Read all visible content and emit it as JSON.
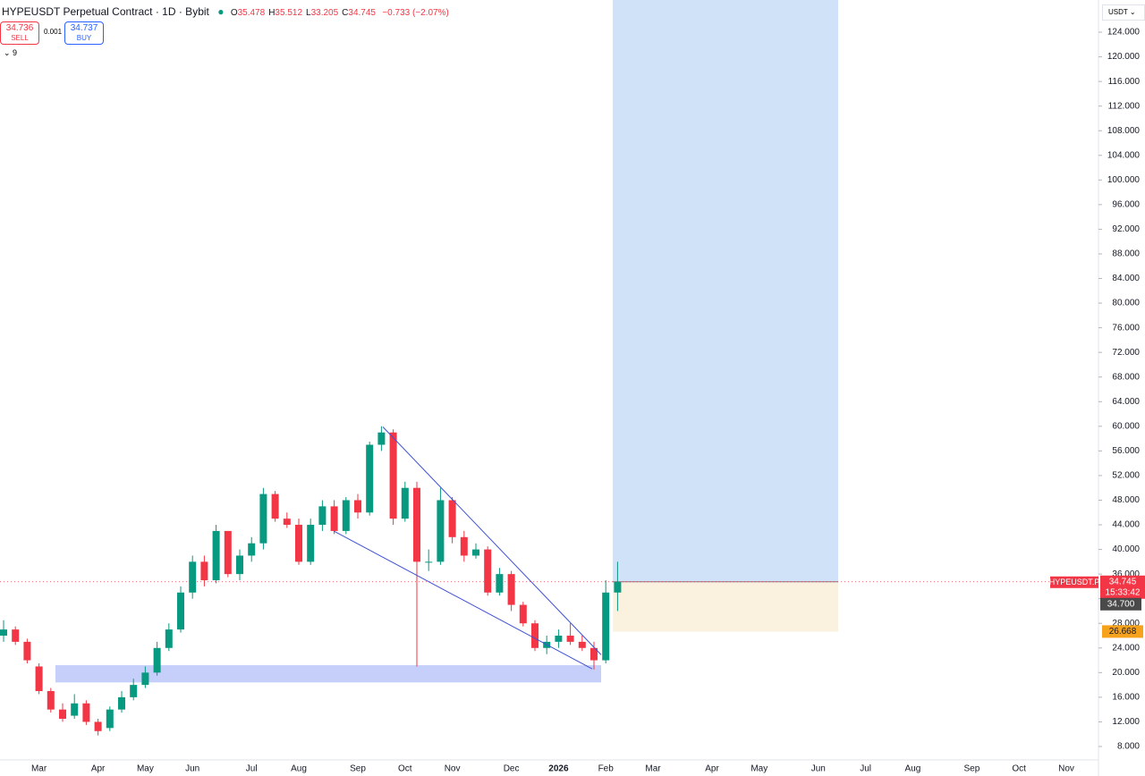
{
  "header": {
    "symbol_line": "HYPEUSDT Perpetual Contract · 1D · Bybit",
    "ohlc": [
      [
        "O",
        "35.478"
      ],
      [
        "H",
        "35.512"
      ],
      [
        "L",
        "33.205"
      ],
      [
        "C",
        "34.745"
      ]
    ],
    "change": "−0.733 (−2.07%)",
    "sell_price": "34.736",
    "sell": "SELL",
    "spread": "0.001",
    "buy_price": "34.737",
    "buy": "BUY",
    "indicators": "9",
    "currency": "USDT"
  },
  "chart_data": {
    "type": "candlestick",
    "up_color": "#089981",
    "down_color": "#f23645",
    "categories": [
      null,
      null,
      null,
      "Mar",
      null,
      null,
      null,
      null,
      "Apr",
      null,
      null,
      null,
      "May",
      null,
      null,
      null,
      "Jun",
      null,
      null,
      null,
      null,
      "Jul",
      null,
      null,
      null,
      "Aug",
      null,
      null,
      null,
      null,
      "Sep",
      null,
      null,
      null,
      "Oct",
      null,
      null,
      null,
      "Nov",
      null,
      null,
      null,
      null,
      "Dec",
      null,
      null,
      null,
      "2026",
      null,
      null,
      null,
      "Feb",
      null,
      null,
      null,
      "Mar",
      null,
      null,
      null,
      null,
      "Apr",
      null,
      null,
      null,
      "May",
      null,
      null,
      null,
      null,
      "Jun",
      null,
      null,
      null,
      "Jul",
      null,
      null,
      null,
      "Aug",
      null,
      null,
      null,
      null,
      "Sep",
      null,
      null,
      null,
      "Oct",
      null,
      null,
      null,
      "Nov",
      null
    ],
    "open": [
      26,
      27,
      25,
      21,
      17,
      14,
      13,
      15,
      12,
      11,
      14,
      16,
      18,
      20,
      24,
      27,
      33,
      38,
      35,
      43,
      36,
      39,
      41,
      49,
      45,
      44,
      38,
      44,
      47,
      43,
      48,
      46,
      57,
      59,
      45,
      50,
      38,
      38,
      48,
      42,
      39,
      40,
      33,
      36,
      31,
      28,
      24,
      25,
      26,
      25,
      24,
      22,
      33,
      null,
      null,
      null,
      null,
      null,
      null,
      null,
      null,
      null,
      null,
      null,
      null,
      null,
      null,
      null,
      null,
      null,
      null,
      null,
      null,
      null,
      null,
      null,
      null,
      null,
      null,
      null,
      null,
      null,
      null,
      null,
      null,
      null,
      null,
      null,
      null,
      null,
      null,
      null
    ],
    "high": [
      28.5,
      27.5,
      25.5,
      21.5,
      17.5,
      15,
      16.5,
      15.5,
      12.5,
      14.5,
      17,
      19,
      21,
      25,
      28,
      34,
      39,
      39,
      44,
      43,
      40,
      42,
      50,
      49.5,
      46,
      45,
      45,
      48,
      48,
      48.5,
      49,
      57.5,
      60,
      59.5,
      51,
      51,
      40,
      50,
      48.5,
      43,
      41,
      40.5,
      37,
      36.5,
      31.5,
      28.5,
      26,
      27,
      28,
      26,
      25,
      35,
      38,
      null,
      null,
      null,
      null,
      null,
      null,
      null,
      null,
      null,
      null,
      null,
      null,
      null,
      null,
      null,
      null,
      null,
      null,
      null,
      null,
      null,
      null,
      null,
      null,
      null,
      null,
      null,
      null,
      null,
      null,
      null,
      null,
      null,
      null,
      null,
      null,
      null,
      null,
      null
    ],
    "low": [
      25,
      24.5,
      21.5,
      16.5,
      13.5,
      12,
      12.5,
      11.5,
      9.8,
      10.5,
      13.5,
      15.5,
      17.5,
      19.5,
      23.5,
      26.5,
      32,
      34,
      34.5,
      35.5,
      35,
      38,
      40,
      44.5,
      43.5,
      37.5,
      37.5,
      43,
      42.5,
      42.5,
      45,
      45.5,
      56,
      44,
      44.5,
      21,
      36.5,
      37.5,
      41,
      38,
      38.5,
      32.5,
      32.5,
      30,
      27.5,
      23.5,
      23,
      24,
      24.5,
      23.5,
      20.5,
      21.5,
      30,
      null,
      null,
      null,
      null,
      null,
      null,
      null,
      null,
      null,
      null,
      null,
      null,
      null,
      null,
      null,
      null,
      null,
      null,
      null,
      null,
      null,
      null,
      null,
      null,
      null,
      null,
      null,
      null,
      null,
      null,
      null,
      null,
      null,
      null,
      null,
      null,
      null,
      null,
      null
    ],
    "close": [
      27,
      25,
      22,
      17,
      14,
      12.5,
      15,
      12,
      10.5,
      14,
      16,
      18,
      20,
      24,
      27,
      33,
      38,
      35,
      43,
      36,
      39,
      41,
      49,
      45,
      44,
      38,
      44,
      47,
      43,
      48,
      46,
      57,
      59,
      45,
      50,
      38,
      38,
      48,
      42,
      39,
      40,
      33,
      36,
      31,
      28,
      24,
      25,
      26,
      25,
      24,
      22,
      33,
      34.745,
      null,
      null,
      null,
      null,
      null,
      null,
      null,
      null,
      null,
      null,
      null,
      null,
      null,
      null,
      null,
      null,
      null,
      null,
      null,
      null,
      null,
      null,
      null,
      null,
      null,
      null,
      null,
      null,
      null,
      null,
      null,
      null,
      null,
      null,
      null,
      null,
      null,
      null,
      null
    ],
    "ylim": [
      5.82,
      129.23
    ],
    "yticks": [
      {
        "value": 8,
        "label": "8.000"
      },
      {
        "value": 12,
        "label": "12.000"
      },
      {
        "value": 16,
        "label": "16.000"
      },
      {
        "value": 20,
        "label": "20.000"
      },
      {
        "value": 24,
        "label": "24.000"
      },
      {
        "value": 28,
        "label": "28.000"
      },
      {
        "value": 32,
        "label": "32.000"
      },
      {
        "value": 36,
        "label": "36.000"
      },
      {
        "value": 40,
        "label": "40.000"
      },
      {
        "value": 44,
        "label": "44.000"
      },
      {
        "value": 48,
        "label": "48.000"
      },
      {
        "value": 52,
        "label": "52.000"
      },
      {
        "value": 56,
        "label": "56.000"
      },
      {
        "value": 60,
        "label": "60.000"
      },
      {
        "value": 64,
        "label": "64.000"
      },
      {
        "value": 68,
        "label": "68.000"
      },
      {
        "value": 72,
        "label": "72.000"
      },
      {
        "value": 76,
        "label": "76.000"
      },
      {
        "value": 80,
        "label": "80.000"
      },
      {
        "value": 84,
        "label": "84.000"
      },
      {
        "value": 88,
        "label": "88.000"
      },
      {
        "value": 92,
        "label": "92.000"
      },
      {
        "value": 96,
        "label": "96.000"
      },
      {
        "value": 100,
        "label": "100.000"
      },
      {
        "value": 104,
        "label": "104.000"
      },
      {
        "value": 108,
        "label": "108.000"
      },
      {
        "value": 112,
        "label": "112.000"
      },
      {
        "value": 116,
        "label": "116.000"
      },
      {
        "value": 120,
        "label": "120.000"
      },
      {
        "value": 124,
        "label": "124.000"
      }
    ],
    "last_price": {
      "symbol": "HYPEUSDT.P",
      "value": 34.745,
      "countdown": "15:33:42"
    },
    "marker_price": {
      "value": 34.7,
      "label": "34.700"
    },
    "position": {
      "entry": 34.745,
      "stop": 26.668,
      "target": 129.23
    },
    "trendlines": [
      {
        "start": 59.9,
        "end": 22.9
      },
      {
        "start": 43.0,
        "end": 20.6
      }
    ],
    "support_zone": {
      "top": 21.2,
      "bottom": 18.4
    }
  }
}
